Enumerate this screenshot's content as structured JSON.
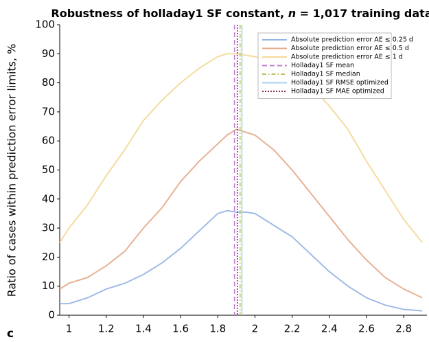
{
  "chart_data": {
    "type": "line",
    "title_parts": [
      "Robustness of holladay1 SF constant, ",
      "n",
      " = 1,017 training data"
    ],
    "y_label": "Ratio of cases within prediction error limits, %",
    "panel_label": "c",
    "x": [
      0.95,
      1,
      1.1,
      1.2,
      1.3,
      1.4,
      1.5,
      1.6,
      1.7,
      1.8,
      1.85,
      1.9,
      1.95,
      2,
      2.1,
      2.2,
      2.3,
      2.4,
      2.5,
      2.6,
      2.7,
      2.8,
      2.9
    ],
    "series": [
      {
        "name": "Absolute prediction error AE ≤ 0.25 d",
        "color": "#94b4e4",
        "values": [
          4,
          4,
          6,
          9,
          11,
          14,
          18,
          23,
          29,
          35,
          36,
          35.5,
          35.5,
          35,
          31,
          27,
          21,
          15,
          10,
          6,
          3.5,
          2,
          1.5
        ]
      },
      {
        "name": "Absolute prediction error AE ≤ 0.5 d",
        "color": "#e4a888",
        "values": [
          9,
          11,
          13,
          17,
          22,
          30,
          37,
          46,
          53,
          59,
          62,
          64,
          63,
          62,
          57,
          50,
          42,
          34,
          26,
          19,
          13,
          9,
          6
        ]
      },
      {
        "name": "Absolute prediction error AE ≤ 1 d",
        "color": "#f4d894",
        "values": [
          25,
          30,
          38,
          48,
          57,
          67,
          74,
          80,
          85,
          89,
          90,
          90,
          89.5,
          89,
          87,
          84,
          79,
          72,
          64,
          53,
          43,
          33,
          25
        ]
      }
    ],
    "vlines": [
      {
        "name": "Holladay1 SF mean",
        "color": "#c07ed4",
        "x": 1.89,
        "dash": "7 4"
      },
      {
        "name": "Holladay1 SF median",
        "color": "#bcc060",
        "x": 1.92,
        "dash": "6 3 1.5 3"
      },
      {
        "name": "Holladay1 SF RMSE optimized",
        "color": "#a8d0ec",
        "x": 1.93,
        "dash": ""
      },
      {
        "name": "Holladay1 SF MAE optimized",
        "color": "#8c2a58",
        "x": 1.905,
        "dash": "2 2"
      }
    ],
    "xlim": [
      0.95,
      2.925
    ],
    "ylim": [
      0,
      100
    ],
    "xticks": [
      1,
      1.2,
      1.4,
      1.6,
      1.8,
      2,
      2.2,
      2.4,
      2.6,
      2.8
    ],
    "yticks": [
      0,
      10,
      20,
      30,
      40,
      50,
      60,
      70,
      80,
      90,
      100
    ],
    "legend": "upper right"
  }
}
